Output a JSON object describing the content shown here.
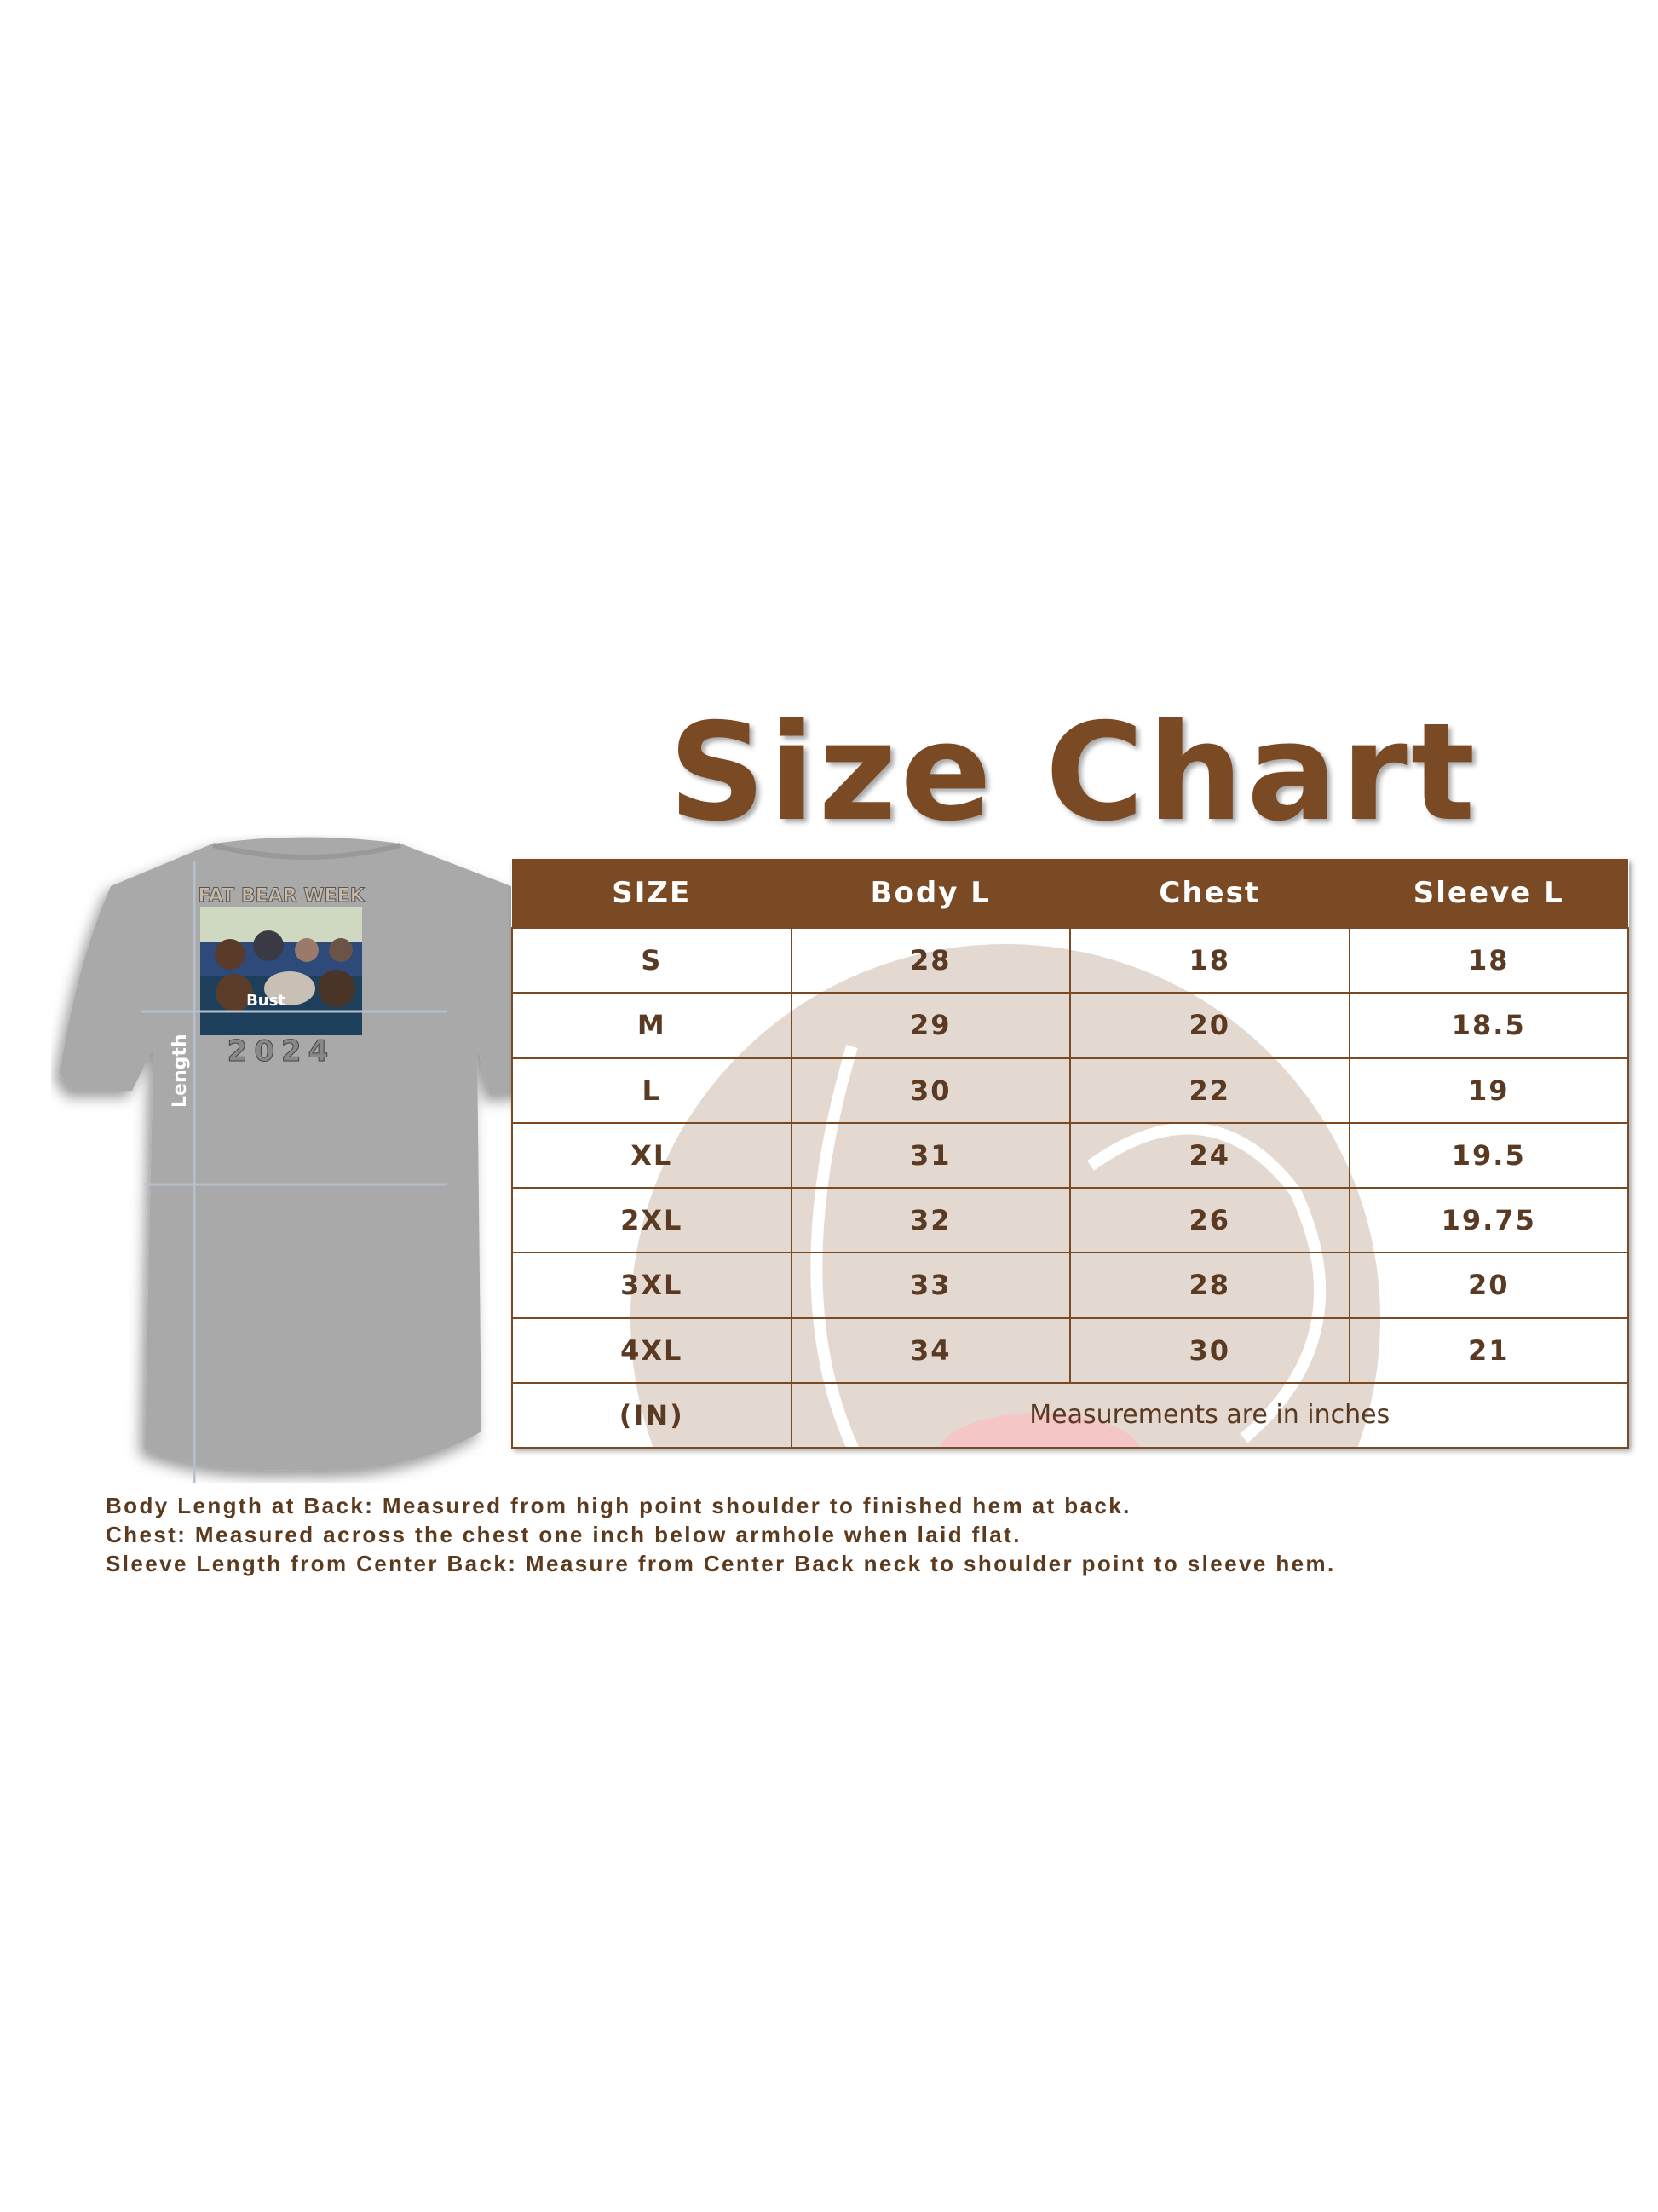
{
  "title": "Size Chart",
  "shirt": {
    "print_title": "FAT BEAR WEEK",
    "print_year": "2024",
    "print_word": "Bust",
    "length_label": "Length",
    "color": "#a9a9a9"
  },
  "colors": {
    "brand": "#7a4a25",
    "text": "#5c3a1e"
  },
  "table": {
    "headers": [
      "SIZE",
      "Body L",
      "Chest",
      "Sleeve L"
    ],
    "rows": [
      [
        "S",
        "28",
        "18",
        "18"
      ],
      [
        "M",
        "29",
        "20",
        "18.5"
      ],
      [
        "L",
        "30",
        "22",
        "19"
      ],
      [
        "XL",
        "31",
        "24",
        "19.5"
      ],
      [
        "2XL",
        "32",
        "26",
        "19.75"
      ],
      [
        "3XL",
        "33",
        "28",
        "20"
      ],
      [
        "4XL",
        "34",
        "30",
        "21"
      ]
    ],
    "unit_label": "(IN)",
    "unit_note": "Measurements are in inches"
  },
  "notes": [
    "Body Length at Back: Measured from high point shoulder to finished hem at back.",
    "Chest: Measured across the chest one inch below armhole when laid flat.",
    "Sleeve Length from Center Back: Measure from Center Back neck to shoulder point to sleeve hem."
  ]
}
